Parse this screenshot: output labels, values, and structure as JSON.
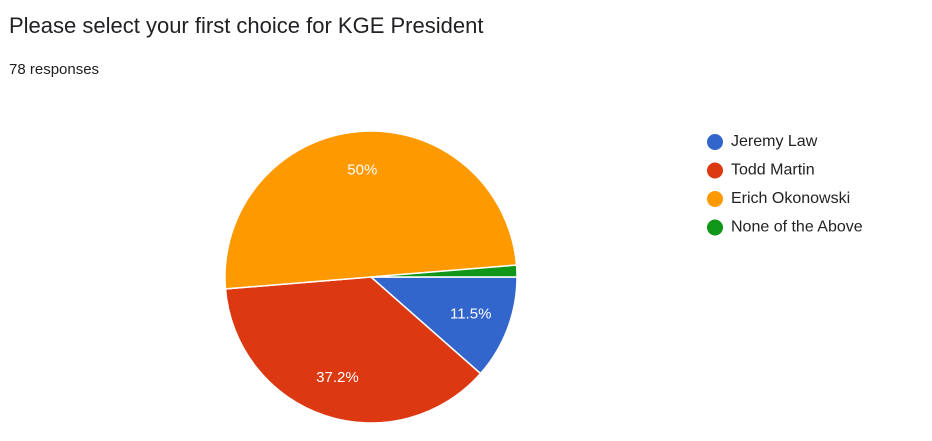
{
  "chart_data": {
    "type": "pie",
    "title": "Please select your first choice for KGE President",
    "subtitle": "78 responses",
    "categories": [
      "Jeremy Law",
      "Todd Martin",
      "Erich Okonowski",
      "None of the Above"
    ],
    "values": [
      11.5,
      37.2,
      50,
      1.3
    ],
    "value_labels": [
      "11.5%",
      "37.2%",
      "50%",
      null
    ],
    "colors": [
      "#3366cc",
      "#dc3912",
      "#ff9900",
      "#109618"
    ],
    "legend": "right"
  }
}
